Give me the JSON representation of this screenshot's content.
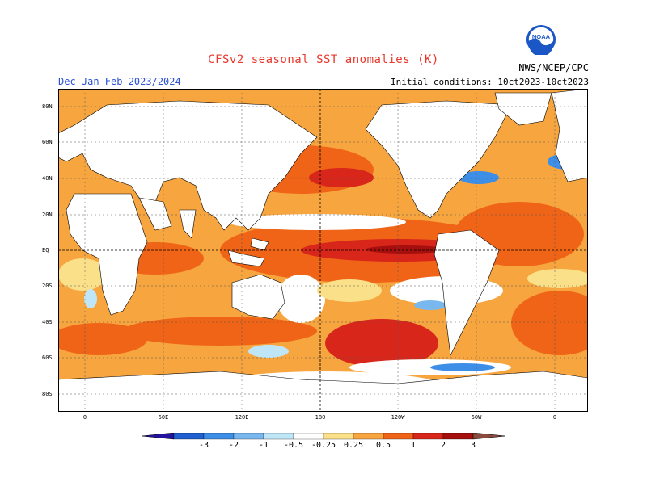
{
  "header": {
    "title": "CFSv2 seasonal SST anomalies (K)",
    "season": "Dec-Jan-Feb 2023/2024",
    "initial_conditions": "Initial conditions: 10ct2023-10ct2023",
    "agency": "NWS/NCEP/CPC",
    "logo_text": "NOAA"
  },
  "map": {
    "lat_labels": [
      "80N",
      "60N",
      "40N",
      "20N",
      "EQ",
      "20S",
      "40S",
      "60S",
      "80S"
    ],
    "lon_labels": [
      "0",
      "60E",
      "120E",
      "180",
      "120W",
      "60W",
      "0"
    ]
  },
  "legend": {
    "levels": [
      "-3",
      "-2",
      "-1",
      "-0.5",
      "-0.25",
      "0.25",
      "0.5",
      "1",
      "2",
      "3"
    ],
    "colors": [
      "#23149e",
      "#1f5fd0",
      "#3d8ee6",
      "#79b8ee",
      "#bfe6f7",
      "#ffffff",
      "#fbe08a",
      "#f7a53f",
      "#ef6416",
      "#d8261b",
      "#a5100e",
      "#8a4a3e"
    ]
  }
}
